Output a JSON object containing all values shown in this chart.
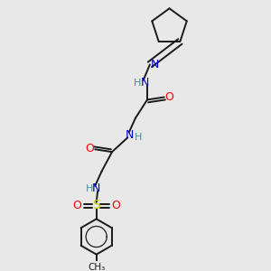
{
  "bg_color": "#e8e8e8",
  "bond_color": "#1a1a1a",
  "N_color": "#0000cc",
  "O_color": "#ff0000",
  "S_color": "#cccc00",
  "H_color": "#4a9090",
  "figsize": [
    3.0,
    3.0
  ],
  "dpi": 100,
  "xlim": [
    0,
    10
  ],
  "ylim": [
    0,
    10
  ]
}
